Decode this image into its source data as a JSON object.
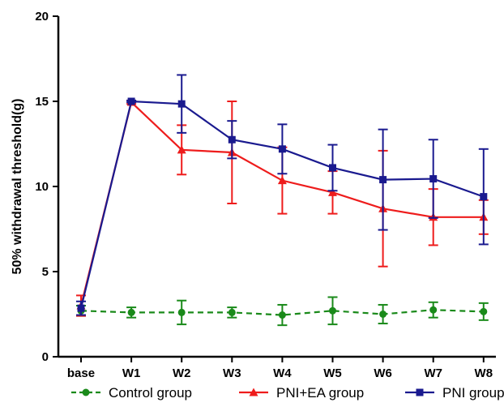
{
  "chart_data": {
    "type": "line",
    "title": "",
    "xlabel": "",
    "ylabel": "50% withdrawal threshold(g)",
    "categories": [
      "base",
      "W1",
      "W2",
      "W3",
      "W4",
      "W5",
      "W6",
      "W7",
      "W8"
    ],
    "ylim": [
      0,
      20
    ],
    "yticks": [
      0,
      5,
      10,
      15,
      20
    ],
    "grid": false,
    "legend_position": "bottom",
    "series": [
      {
        "name": "Control group",
        "color": "#1a8a1a",
        "line_style": "dashed",
        "marker": "circle",
        "values": [
          2.7,
          2.6,
          2.6,
          2.6,
          2.45,
          2.7,
          2.5,
          2.75,
          2.65
        ],
        "error": [
          0.3,
          0.3,
          0.7,
          0.3,
          0.6,
          0.8,
          0.55,
          0.45,
          0.5
        ]
      },
      {
        "name": "PNI+EA group",
        "color": "#ee1c1c",
        "line_style": "solid",
        "marker": "triangle",
        "values": [
          3.0,
          14.95,
          12.15,
          12.0,
          10.35,
          9.65,
          8.7,
          8.2,
          8.2
        ],
        "error": [
          0.6,
          0.1,
          1.45,
          3.0,
          1.95,
          1.25,
          3.4,
          1.65,
          1.0
        ]
      },
      {
        "name": "PNI group",
        "color": "#1a1a8f",
        "line_style": "solid",
        "marker": "square",
        "values": [
          2.85,
          15.0,
          14.85,
          12.75,
          12.2,
          11.1,
          10.4,
          10.45,
          9.4
        ],
        "error": [
          0.4,
          0.05,
          1.7,
          1.1,
          1.45,
          1.35,
          2.95,
          2.3,
          2.8
        ]
      }
    ]
  }
}
